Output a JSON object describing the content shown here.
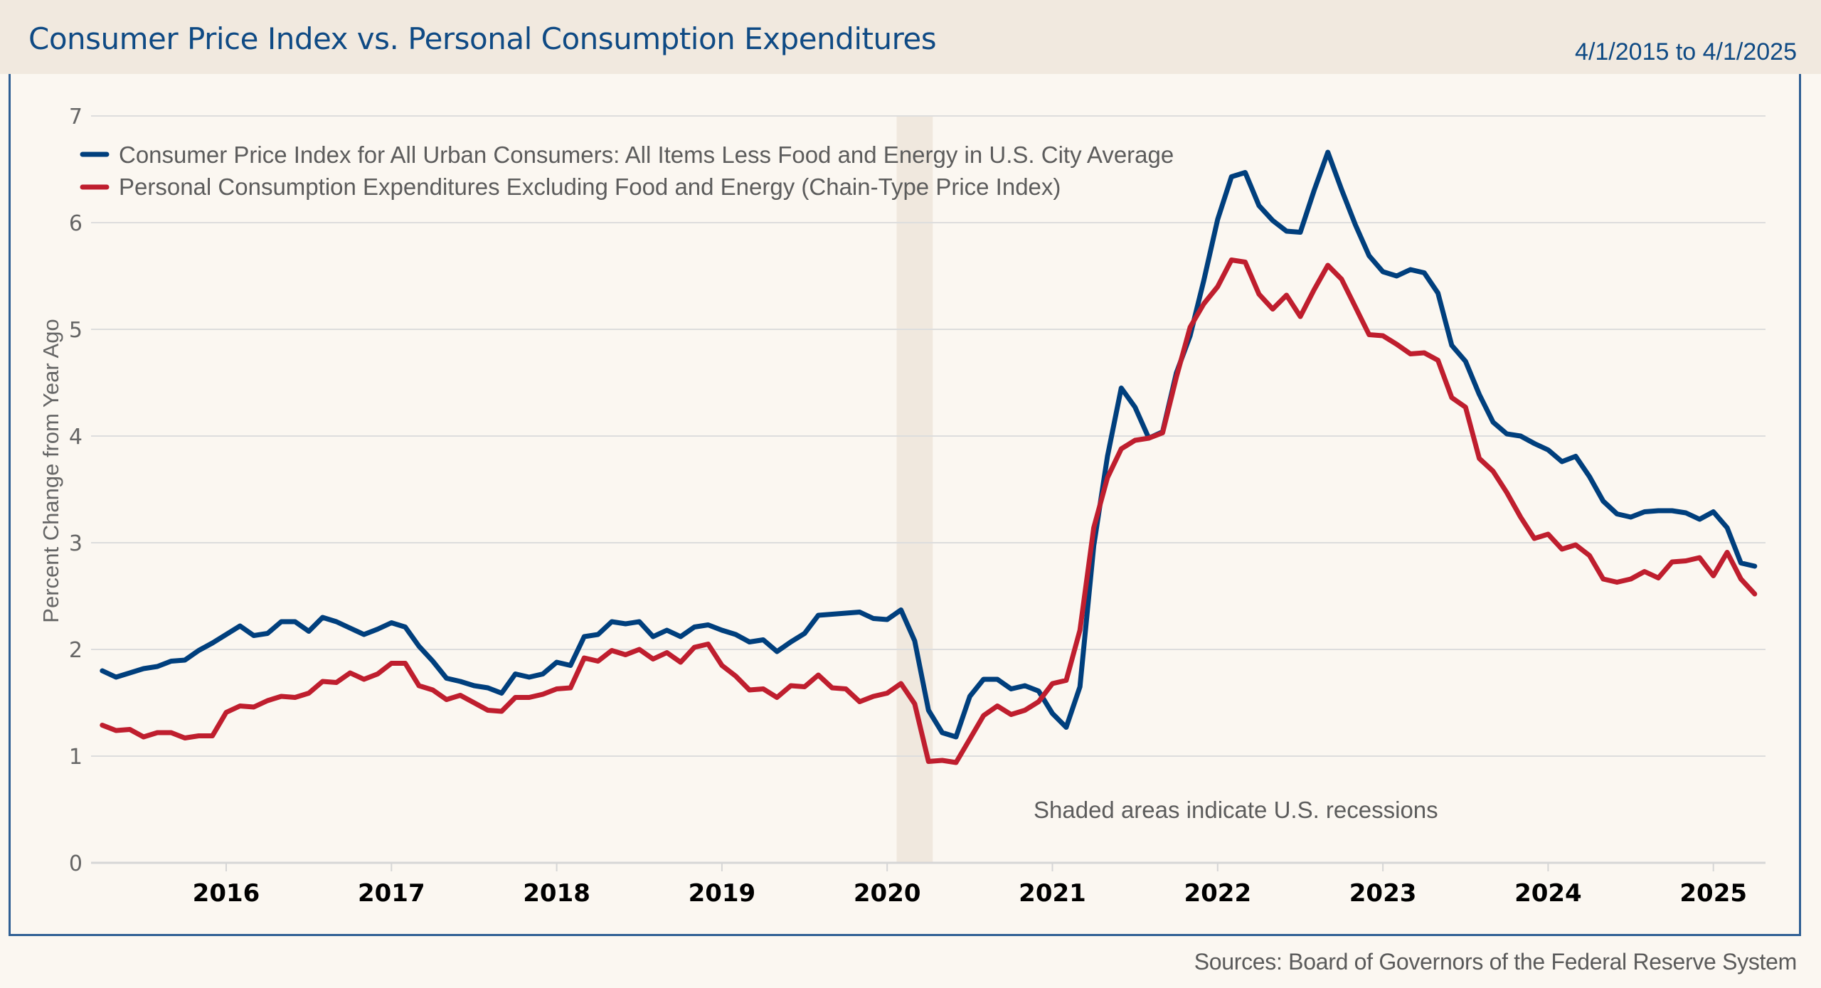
{
  "header": {
    "title": "Consumer Price Index vs. Personal Consumption Expenditures",
    "date_range": "4/1/2015 to 4/1/2025"
  },
  "footer": {
    "source": "Sources: Board of Governors of the Federal Reserve System"
  },
  "colors": {
    "cpi": "#003f7d",
    "pce": "#bf1e2e",
    "title": "#0f4a84",
    "recession_shade": "#f0e8de",
    "grid": "#dddddd",
    "header_bg": "#f1e9df",
    "page_bg": "#fbf7f1"
  },
  "chart_data": {
    "type": "line",
    "title": "Consumer Price Index vs. Personal Consumption Expenditures",
    "xlabel": "",
    "ylabel": "Percent Change from Year Ago",
    "ylim": [
      0,
      7
    ],
    "yticks": [
      0,
      1,
      2,
      3,
      4,
      5,
      6,
      7
    ],
    "xlim": [
      "2015-04",
      "2025-04"
    ],
    "xticks": [
      "2016",
      "2017",
      "2018",
      "2019",
      "2020",
      "2021",
      "2022",
      "2023",
      "2024",
      "2025"
    ],
    "grid": true,
    "legend_position": "top-left",
    "annotation": "Shaded areas indicate U.S. recessions",
    "recessions": [
      {
        "start": "2020-02",
        "end": "2020-04"
      }
    ],
    "start_month": "2015-04",
    "frequency": "monthly",
    "series": [
      {
        "name": "Consumer Price Index for All Urban Consumers: All Items Less Food and Energy in U.S. City Average",
        "key": "cpi",
        "values": [
          1.8,
          1.74,
          1.78,
          1.82,
          1.84,
          1.89,
          1.9,
          1.99,
          2.06,
          2.14,
          2.22,
          2.13,
          2.15,
          2.26,
          2.26,
          2.17,
          2.3,
          2.26,
          2.2,
          2.14,
          2.19,
          2.25,
          2.21,
          2.03,
          1.89,
          1.73,
          1.7,
          1.66,
          1.64,
          1.59,
          1.77,
          1.74,
          1.77,
          1.88,
          1.85,
          2.12,
          2.14,
          2.26,
          2.24,
          2.26,
          2.12,
          2.18,
          2.12,
          2.21,
          2.23,
          2.18,
          2.14,
          2.07,
          2.09,
          1.98,
          2.07,
          2.15,
          2.32,
          2.33,
          2.34,
          2.35,
          2.29,
          2.28,
          2.37,
          2.08,
          1.43,
          1.22,
          1.18,
          1.56,
          1.72,
          1.72,
          1.63,
          1.66,
          1.61,
          1.4,
          1.27,
          1.65,
          2.97,
          3.81,
          4.45,
          4.27,
          3.98,
          4.04,
          4.59,
          4.94,
          5.46,
          6.03,
          6.43,
          6.47,
          6.16,
          6.02,
          5.92,
          5.91,
          6.3,
          6.66,
          6.31,
          5.98,
          5.69,
          5.54,
          5.5,
          5.56,
          5.53,
          5.34,
          4.85,
          4.7,
          4.39,
          4.13,
          4.02,
          4.0,
          3.93,
          3.87,
          3.76,
          3.81,
          3.62,
          3.39,
          3.27,
          3.24,
          3.29,
          3.3,
          3.3,
          3.28,
          3.22,
          3.29,
          3.14,
          2.81,
          2.78
        ]
      },
      {
        "name": "Personal Consumption Expenditures Excluding Food and Energy (Chain-Type Price Index)",
        "key": "pce",
        "values": [
          1.29,
          1.24,
          1.25,
          1.18,
          1.22,
          1.22,
          1.17,
          1.19,
          1.19,
          1.41,
          1.47,
          1.46,
          1.52,
          1.56,
          1.55,
          1.59,
          1.7,
          1.69,
          1.78,
          1.72,
          1.77,
          1.87,
          1.87,
          1.66,
          1.62,
          1.53,
          1.57,
          1.5,
          1.43,
          1.42,
          1.55,
          1.55,
          1.58,
          1.63,
          1.64,
          1.92,
          1.89,
          1.99,
          1.95,
          2.0,
          1.91,
          1.97,
          1.88,
          2.02,
          2.05,
          1.85,
          1.75,
          1.62,
          1.63,
          1.55,
          1.66,
          1.65,
          1.76,
          1.64,
          1.63,
          1.51,
          1.56,
          1.59,
          1.68,
          1.49,
          0.95,
          0.96,
          0.94,
          1.16,
          1.38,
          1.47,
          1.39,
          1.43,
          1.51,
          1.68,
          1.71,
          2.18,
          3.14,
          3.61,
          3.88,
          3.96,
          3.98,
          4.03,
          4.55,
          5.02,
          5.24,
          5.4,
          5.65,
          5.63,
          5.33,
          5.19,
          5.32,
          5.12,
          5.37,
          5.6,
          5.47,
          5.21,
          4.95,
          4.94,
          4.86,
          4.77,
          4.78,
          4.71,
          4.36,
          4.27,
          3.79,
          3.67,
          3.47,
          3.24,
          3.04,
          3.08,
          2.94,
          2.98,
          2.88,
          2.66,
          2.63,
          2.66,
          2.73,
          2.67,
          2.82,
          2.83,
          2.86,
          2.69,
          2.91,
          2.66,
          2.52
        ]
      }
    ]
  }
}
